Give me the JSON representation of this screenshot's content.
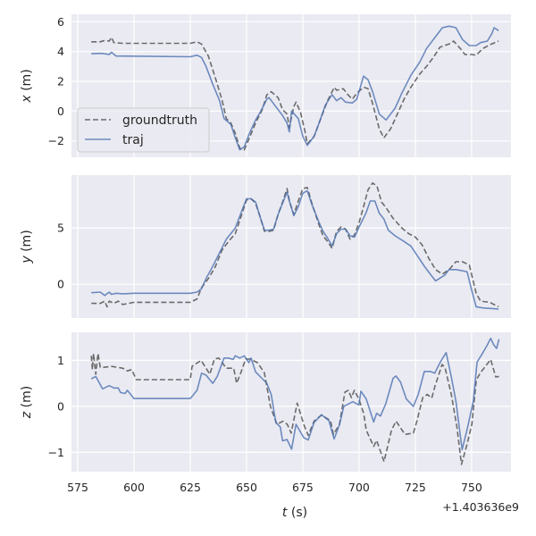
{
  "chart_data": {
    "type": "line",
    "xlabel": {
      "var": "t",
      "unit": " (s)"
    },
    "x_offset_text": "+1.403636e9",
    "xlim": [
      572.2,
      767.5
    ],
    "xticks": [
      575,
      600,
      625,
      650,
      675,
      700,
      725,
      750
    ],
    "xtick_labels": [
      "575",
      "600",
      "625",
      "650",
      "675",
      "700",
      "725",
      "750"
    ],
    "grid": true,
    "background": "#eaeaf2",
    "colors": {
      "traj": "#4c72b0",
      "groundtruth": "#555555"
    },
    "legend": {
      "placement": "lower-left of top panel",
      "entries": [
        {
          "label": "groundtruth",
          "style": "dashed"
        },
        {
          "label": "traj",
          "style": "solid"
        }
      ]
    },
    "subplots": [
      {
        "ylabel": {
          "var": "x",
          "unit": " (m)"
        },
        "ylim": [
          -3.1,
          6.5
        ],
        "yticks": [
          6,
          4,
          2,
          0,
          -2
        ],
        "ytick_labels": [
          "6",
          "4",
          "2",
          "0",
          "−2"
        ],
        "series": [
          {
            "name": "groundtruth",
            "t": [
              581,
              585,
              587,
              589,
              590,
              591,
              595,
              625,
              628,
              630,
              633,
              636,
              639,
              641,
              643,
              645,
              647,
              649,
              651,
              654,
              657,
              659,
              661,
              664,
              666,
              668,
              669,
              671,
              672,
              674,
              676,
              677,
              680,
              683,
              686,
              689,
              690,
              693,
              695,
              697,
              699,
              702,
              704,
              706,
              709,
              711,
              714,
              717,
              720,
              723,
              727,
              730,
              733,
              736,
              740,
              742,
              745,
              747,
              750,
              752,
              755,
              758,
              762
            ],
            "values": [
              4.65,
              4.65,
              4.75,
              4.7,
              4.95,
              4.6,
              4.55,
              4.55,
              4.65,
              4.5,
              3.7,
              2.3,
              0.8,
              -0.5,
              -0.8,
              -1.5,
              -2.5,
              -2.6,
              -1.9,
              -0.8,
              0.1,
              1.1,
              1.3,
              0.9,
              0.1,
              -0.2,
              -1.1,
              0.3,
              0.6,
              -0.1,
              -1.4,
              -2.2,
              -1.7,
              -0.5,
              0.7,
              1.6,
              1.4,
              1.5,
              1.1,
              0.8,
              1.2,
              1.6,
              1.5,
              0.5,
              -1.2,
              -1.8,
              -1.2,
              -0.2,
              0.8,
              1.6,
              2.5,
              3.0,
              3.6,
              4.3,
              4.5,
              4.7,
              4.2,
              3.8,
              3.8,
              3.75,
              4.2,
              4.45,
              4.7
            ]
          },
          {
            "name": "traj",
            "t": [
              581,
              585,
              587,
              589,
              590,
              592,
              625,
              628,
              630,
              632,
              635,
              638,
              640,
              643,
              645,
              647,
              649,
              651,
              654,
              656,
              659,
              660,
              663,
              666,
              668,
              669,
              670,
              673,
              675,
              677,
              680,
              682,
              685,
              688,
              690,
              692,
              694,
              697,
              699,
              702,
              704,
              706,
              709,
              712,
              716,
              719,
              723,
              727,
              730,
              734,
              737,
              740,
              743,
              746,
              749,
              752,
              754,
              757,
              759,
              760,
              762
            ],
            "values": [
              3.85,
              3.88,
              3.85,
              3.8,
              3.95,
              3.7,
              3.65,
              3.75,
              3.6,
              3.0,
              1.8,
              0.7,
              -0.5,
              -0.9,
              -1.8,
              -2.6,
              -2.4,
              -1.6,
              -0.6,
              -0.1,
              0.8,
              0.9,
              0.3,
              -0.3,
              -0.8,
              -1.4,
              0.0,
              -0.5,
              -1.7,
              -2.3,
              -1.7,
              -0.9,
              0.4,
              1.1,
              0.7,
              0.9,
              0.6,
              0.55,
              0.8,
              2.35,
              2.1,
              1.3,
              -0.2,
              -0.6,
              0.2,
              1.2,
              2.4,
              3.3,
              4.2,
              5.0,
              5.6,
              5.7,
              5.6,
              4.8,
              4.4,
              4.4,
              4.6,
              4.7,
              5.2,
              5.6,
              5.4
            ]
          }
        ]
      },
      {
        "ylabel": {
          "var": "y",
          "unit": " (m)"
        },
        "ylim": [
          -3.0,
          9.7
        ],
        "yticks": [
          5,
          0
        ],
        "ytick_labels": [
          "5",
          "0"
        ],
        "series": [
          {
            "name": "groundtruth",
            "t": [
              581,
              585,
              587,
              588,
              589,
              591,
              593,
              595,
              600,
              625,
              628,
              630,
              633,
              636,
              639,
              642,
              645,
              648,
              650,
              652,
              654,
              656,
              658,
              660,
              662,
              664,
              666,
              668,
              669,
              671,
              673,
              675,
              677,
              679,
              682,
              684,
              686,
              688,
              690,
              692,
              694,
              696,
              698,
              700,
              702,
              704,
              706,
              708,
              710,
              712,
              715,
              719,
              722,
              725,
              728,
              731,
              734,
              737,
              740,
              743,
              746,
              749,
              752,
              754,
              758,
              762
            ],
            "values": [
              -1.7,
              -1.7,
              -1.5,
              -2.0,
              -1.5,
              -1.7,
              -1.5,
              -1.8,
              -1.6,
              -1.6,
              -1.3,
              -0.3,
              0.5,
              1.5,
              3.0,
              3.8,
              4.5,
              6.3,
              7.5,
              7.6,
              7.2,
              6.0,
              4.7,
              4.7,
              4.8,
              6.2,
              7.3,
              8.5,
              7.4,
              6.2,
              7.4,
              8.5,
              8.6,
              7.2,
              5.4,
              4.3,
              3.8,
              3.2,
              4.7,
              5.1,
              4.9,
              4.0,
              4.4,
              5.5,
              6.9,
              8.4,
              9.0,
              8.7,
              7.3,
              6.8,
              5.9,
              5.0,
              4.5,
              4.2,
              3.5,
              2.3,
              1.3,
              0.9,
              1.3,
              2.0,
              2.0,
              1.7,
              -0.8,
              -1.5,
              -1.6,
              -2.0
            ]
          },
          {
            "name": "traj",
            "t": [
              581,
              585,
              587,
              589,
              590,
              592,
              595,
              600,
              625,
              628,
              630,
              632,
              635,
              638,
              641,
              645,
              648,
              650,
              652,
              654,
              656,
              658,
              660,
              662,
              664,
              666,
              668,
              669,
              671,
              673,
              675,
              677,
              679,
              682,
              684,
              686,
              688,
              690,
              692,
              694,
              696,
              698,
              700,
              703,
              705,
              707,
              709,
              711,
              713,
              716,
              720,
              723,
              726,
              729,
              732,
              734,
              738,
              740,
              743,
              746,
              748,
              750,
              752,
              755,
              762
            ],
            "values": [
              -0.75,
              -0.7,
              -1.0,
              -0.7,
              -0.9,
              -0.8,
              -0.85,
              -0.8,
              -0.8,
              -0.7,
              -0.4,
              0.5,
              1.6,
              2.8,
              4.0,
              5.0,
              6.6,
              7.6,
              7.6,
              7.3,
              6.0,
              4.8,
              4.8,
              4.9,
              6.2,
              7.2,
              8.2,
              7.4,
              6.1,
              6.9,
              8.1,
              8.3,
              7.1,
              5.6,
              4.7,
              4.1,
              3.4,
              4.5,
              4.9,
              4.9,
              4.3,
              4.2,
              5.1,
              6.3,
              7.4,
              7.4,
              6.3,
              5.8,
              4.8,
              4.3,
              3.8,
              3.4,
              2.5,
              1.6,
              0.8,
              0.3,
              0.8,
              1.3,
              1.3,
              1.2,
              1.1,
              -0.5,
              -2.0,
              -2.1,
              -2.2
            ]
          }
        ]
      },
      {
        "ylabel": {
          "var": "z",
          "unit": " (m)"
        },
        "ylim": [
          -1.42,
          1.61
        ],
        "yticks": [
          1,
          0,
          -1
        ],
        "ytick_labels": [
          "1",
          "0",
          "−1"
        ],
        "series": [
          {
            "name": "groundtruth",
            "t": [
              581,
              581.5,
              582,
              583,
              584,
              585,
              587,
              590,
              595,
              597,
              599,
              601,
              625,
              625.8,
              629.8,
              633.7,
              635.7,
              637.7,
              641,
              644.3,
              645.6,
              647.6,
              649.6,
              651.6,
              654.9,
              657.9,
              660.6,
              663.5,
              666.2,
              668.1,
              669.8,
              671.4,
              672.5,
              675.4,
              677.4,
              680,
              683.3,
              687.3,
              688.6,
              691.3,
              693.7,
              695.2,
              696.6,
              697.9,
              699.9,
              702.1,
              703.2,
              706.5,
              707.8,
              711.1,
              714.4,
              716.4,
              720.4,
              724.1,
              725.7,
              728.3,
              730.3,
              732.3,
              733.6,
              736.9,
              738.2,
              741,
              743.5,
              745.5,
              747.9,
              750.1,
              752.1,
              754.1,
              758.5,
              760.7,
              762.2
            ],
            "values": [
              1.1,
              0.8,
              1.15,
              0.7,
              1.15,
              0.85,
              0.85,
              0.87,
              0.83,
              0.77,
              0.8,
              0.58,
              0.58,
              0.87,
              1.0,
              0.7,
              1.03,
              1.05,
              0.83,
              0.83,
              0.5,
              0.75,
              1.03,
              1.03,
              0.95,
              0.73,
              0.0,
              -0.39,
              -0.32,
              -0.39,
              -0.58,
              -0.2,
              0.07,
              -0.39,
              -0.63,
              -0.32,
              -0.19,
              -0.31,
              -0.61,
              -0.39,
              0.31,
              0.35,
              0.19,
              0.35,
              0.16,
              -0.16,
              -0.52,
              -0.87,
              -0.74,
              -1.2,
              -0.52,
              -0.32,
              -0.61,
              -0.58,
              -0.32,
              0.19,
              0.26,
              0.18,
              0.42,
              0.91,
              0.84,
              0.26,
              -0.45,
              -1.26,
              -0.84,
              -0.39,
              0.58,
              0.74,
              1.02,
              0.64,
              0.65
            ]
          },
          {
            "name": "traj",
            "t": [
              581,
              583,
              586,
              589,
              591,
              593,
              594,
              596,
              597,
              600,
              625,
              628,
              630,
              632,
              635,
              637,
              640,
              642,
              644,
              645,
              647,
              649,
              651,
              652,
              654,
              657,
              659,
              661,
              663,
              665,
              666,
              668,
              670,
              672,
              675.4,
              677.4,
              680,
              683.3,
              686.6,
              688.9,
              691.3,
              693.2,
              697.2,
              699.9,
              700.8,
              703.2,
              706.5,
              707.8,
              709.5,
              711.8,
              715.1,
              716.4,
              718.4,
              721,
              724.1,
              726.3,
              729,
              731.6,
              733.6,
              736.3,
              738.7,
              741,
              743,
              745.8,
              748.2,
              750.8,
              752.4,
              754.8,
              756.7,
              758.5,
              759.8,
              761.1,
              762.2
            ],
            "values": [
              0.6,
              0.65,
              0.38,
              0.45,
              0.4,
              0.4,
              0.3,
              0.28,
              0.35,
              0.17,
              0.17,
              0.35,
              0.72,
              0.68,
              0.5,
              0.65,
              1.05,
              1.05,
              1.02,
              1.1,
              1.05,
              1.1,
              0.95,
              1.05,
              0.75,
              0.6,
              0.5,
              0.25,
              -0.35,
              -0.45,
              -0.75,
              -0.72,
              -0.93,
              -0.39,
              -0.68,
              -0.73,
              -0.35,
              -0.18,
              -0.31,
              -0.71,
              -0.4,
              0.0,
              0.1,
              0.03,
              0.33,
              0.16,
              -0.34,
              -0.15,
              -0.21,
              0.05,
              0.61,
              0.66,
              0.53,
              0.16,
              0.0,
              0.26,
              0.76,
              0.76,
              0.72,
              0.98,
              1.17,
              0.64,
              0.12,
              -0.94,
              -0.46,
              0.12,
              0.96,
              1.15,
              1.31,
              1.48,
              1.34,
              1.26,
              1.46
            ]
          }
        ]
      }
    ]
  }
}
